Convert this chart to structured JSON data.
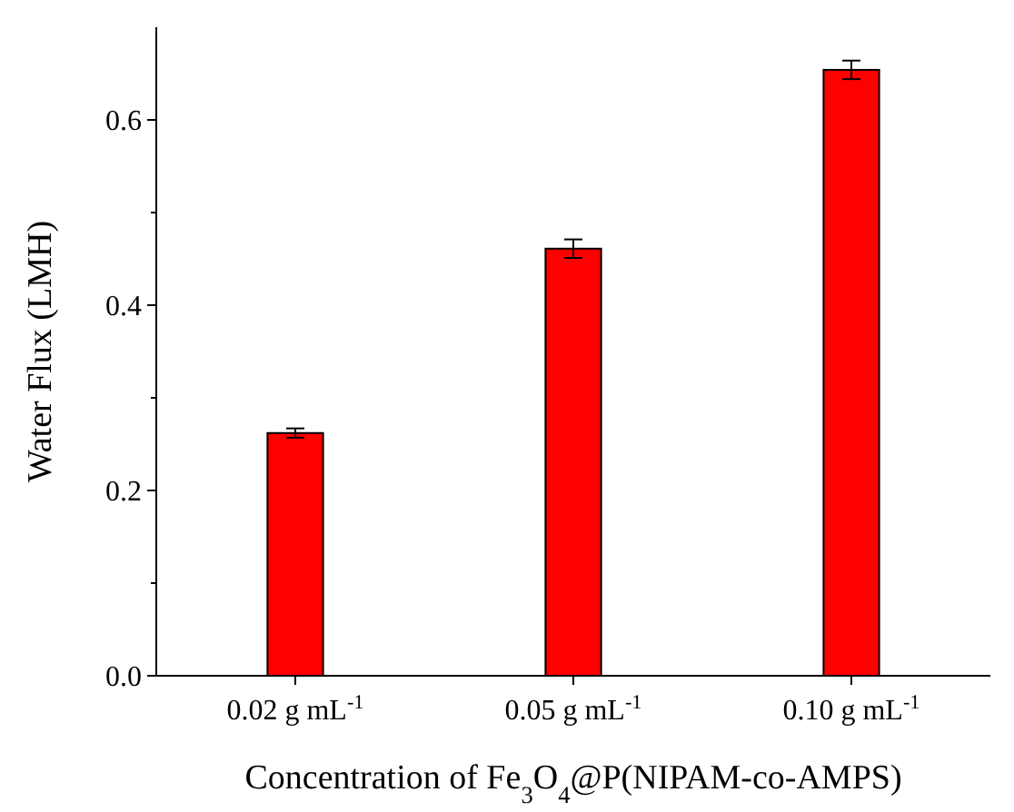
{
  "chart_data": {
    "type": "bar",
    "xlabel": "Concentration of Fe$_{3}$O$_{4}$@P(NIPAM-co-AMPS)",
    "ylabel": "Water Flux (LMH)",
    "categories": [
      "0.02 g mL$^{-1}$",
      "0.05 g mL$^{-1}$",
      "0.10 g mL$^{-1}$"
    ],
    "values": [
      0.262,
      0.461,
      0.654
    ],
    "errors": [
      0.005,
      0.01,
      0.01
    ],
    "color": "#ff0000",
    "ylim": [
      0,
      0.7
    ],
    "yticks": [
      {
        "value": 0,
        "label": "0.0"
      },
      {
        "value": 0.2,
        "label": "0.2"
      },
      {
        "value": 0.4,
        "label": "0.4"
      },
      {
        "value": 0.6,
        "label": "0.6"
      }
    ],
    "grid": false
  }
}
